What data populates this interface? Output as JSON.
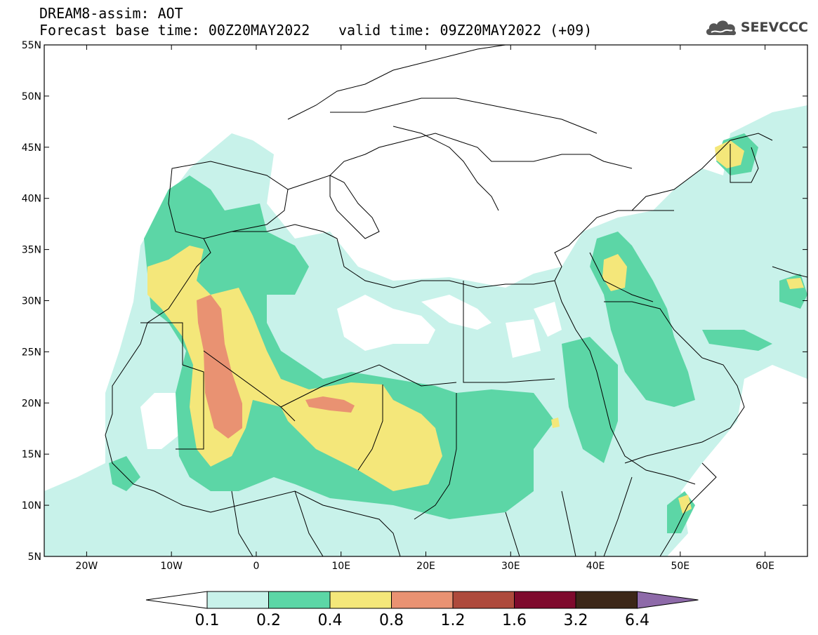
{
  "header": {
    "title_line1": "DREAM8-assim: AOT",
    "base_time": "Forecast base time: 00Z20MAY2022",
    "valid_time": "valid time: 09Z20MAY2022 (+09)"
  },
  "logo": {
    "text": "SEEVCCC",
    "icon": "cloud-icon"
  },
  "map": {
    "lon_range": [
      -25,
      65
    ],
    "lat_range": [
      5,
      55
    ],
    "lon_ticks": [
      {
        "value": -20,
        "label": "20W"
      },
      {
        "value": -10,
        "label": "10W"
      },
      {
        "value": 0,
        "label": "0"
      },
      {
        "value": 10,
        "label": "10E"
      },
      {
        "value": 20,
        "label": "20E"
      },
      {
        "value": 30,
        "label": "30E"
      },
      {
        "value": 40,
        "label": "40E"
      },
      {
        "value": 50,
        "label": "50E"
      },
      {
        "value": 60,
        "label": "60E"
      }
    ],
    "lat_ticks": [
      {
        "value": 5,
        "label": "5N"
      },
      {
        "value": 10,
        "label": "10N"
      },
      {
        "value": 15,
        "label": "15N"
      },
      {
        "value": 20,
        "label": "20N"
      },
      {
        "value": 25,
        "label": "25N"
      },
      {
        "value": 30,
        "label": "30N"
      },
      {
        "value": 35,
        "label": "35N"
      },
      {
        "value": 40,
        "label": "40N"
      },
      {
        "value": 45,
        "label": "45N"
      },
      {
        "value": 50,
        "label": "50N"
      },
      {
        "value": 55,
        "label": "55N"
      }
    ]
  },
  "colorbar": {
    "levels": [
      "0.1",
      "0.2",
      "0.4",
      "0.8",
      "1.2",
      "1.6",
      "3.2",
      "6.4"
    ],
    "colors": [
      "#c8f2ea",
      "#5cd6a6",
      "#f4e77a",
      "#e99272",
      "#ae4a3c",
      "#7e0a2d",
      "#3c2718"
    ],
    "under_color": "#ffffff",
    "over_color": "#8e6aa9"
  },
  "aot_colors": {
    "c1": "#c8f2ea",
    "c2": "#5cd6a6",
    "c3": "#f4e77a",
    "c4": "#e99272"
  }
}
